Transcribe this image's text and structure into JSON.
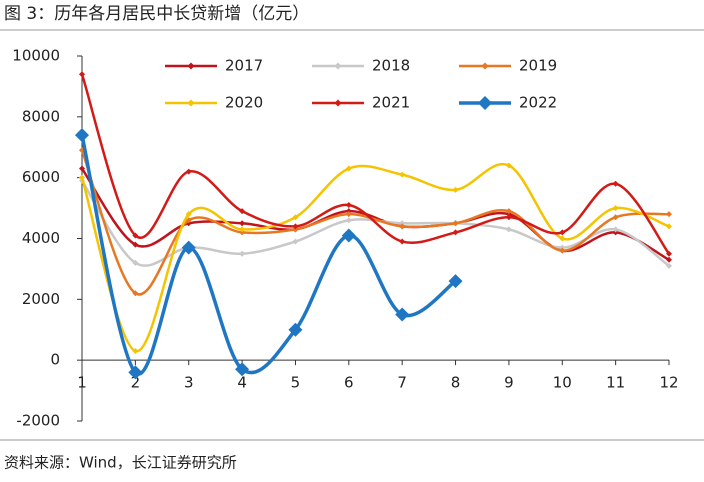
{
  "chart_data": {
    "type": "line",
    "title": "图 3：历年各月居民中长贷新增（亿元）",
    "source": "资料来源：Wind，长江证券研究所",
    "x": [
      1,
      2,
      3,
      4,
      5,
      6,
      7,
      8,
      9,
      10,
      11,
      12
    ],
    "xlim": [
      1,
      12
    ],
    "xticks": [
      1,
      2,
      3,
      4,
      5,
      6,
      7,
      8,
      9,
      10,
      11,
      12
    ],
    "ylim": [
      -2000,
      10000
    ],
    "yticks": [
      -2000,
      0,
      2000,
      4000,
      6000,
      8000,
      10000
    ],
    "legend": "top",
    "series": [
      {
        "name": "2017",
        "color": "#c0141c",
        "values": [
          6300,
          3800,
          4500,
          4500,
          4300,
          4900,
          4400,
          4500,
          4800,
          3600,
          4200,
          3300
        ]
      },
      {
        "name": "2018",
        "color": "#c8c8c8",
        "values": [
          5900,
          3200,
          3700,
          3500,
          3900,
          4600,
          4500,
          4500,
          4300,
          3700,
          4300,
          3100
        ]
      },
      {
        "name": "2019",
        "color": "#e87722",
        "values": [
          6900,
          2200,
          4600,
          4200,
          4300,
          4800,
          4400,
          4500,
          4900,
          3600,
          4700,
          4800
        ]
      },
      {
        "name": "2020",
        "color": "#f5c400",
        "values": [
          6000,
          300,
          4800,
          4300,
          4700,
          6300,
          6100,
          5600,
          6400,
          4000,
          5000,
          4400
        ]
      },
      {
        "name": "2021",
        "color": "#d21a16",
        "values": [
          9400,
          4100,
          6200,
          4900,
          4400,
          5100,
          3900,
          4200,
          4700,
          4200,
          5800,
          3500
        ]
      },
      {
        "name": "2022",
        "color": "#1f77c4",
        "values": [
          7400,
          -400,
          3700,
          -300,
          1000,
          4100,
          1500,
          2600,
          null,
          null,
          null,
          null
        ]
      }
    ]
  }
}
